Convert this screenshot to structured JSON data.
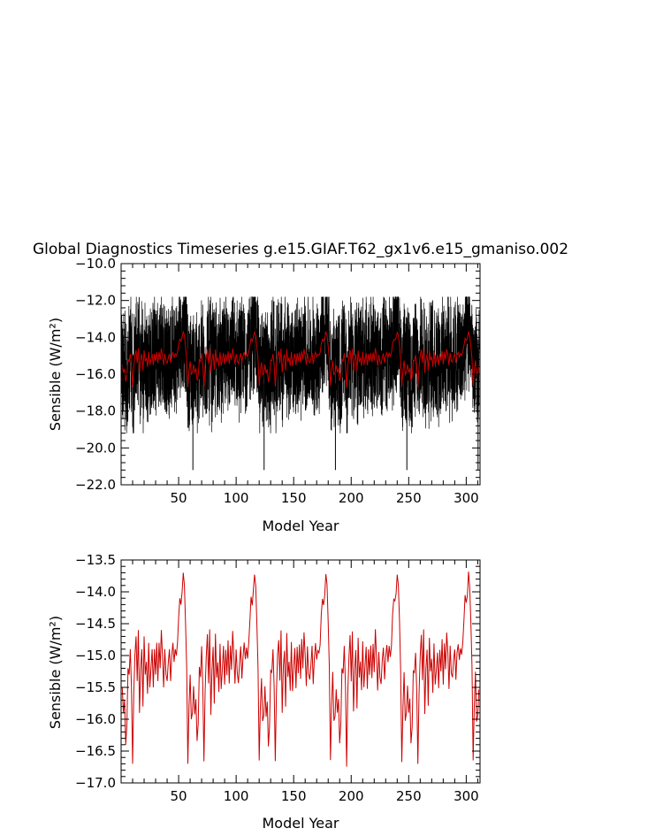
{
  "title": "Global Diagnostics Timeseries g.e15.GIAF.T62_gx1v6.e15_gmaniso.002",
  "colors": {
    "monthly": "#000000",
    "annual": "#cc0000",
    "axis": "#000000"
  },
  "chart_data": [
    {
      "type": "line",
      "panel": "top",
      "xlabel": "Model Year",
      "ylabel": "Sensible (W/m²)",
      "xlim": [
        0,
        312
      ],
      "ylim": [
        -22.0,
        -10.0
      ],
      "xticks": [
        50,
        100,
        150,
        200,
        250,
        300
      ],
      "yticks": [
        -22.0,
        -20.0,
        -18.0,
        -16.0,
        -14.0,
        -12.0,
        -10.0
      ],
      "ytick_labels": [
        "−22.0",
        "−20.0",
        "−18.0",
        "−16.0",
        "−14.0",
        "−12.0",
        "−10.0"
      ],
      "series": [
        {
          "kind": "monthly",
          "color": "#000000",
          "description_values": {
            "typical_min": -18.5,
            "typical_max": -12.5,
            "spikes_min": -21.3
          }
        },
        {
          "kind": "annual",
          "color": "#cc0000"
        }
      ]
    },
    {
      "type": "line",
      "panel": "bottom",
      "xlabel": "Model Year",
      "ylabel": "Sensible (W/m²)",
      "xlim": [
        0,
        312
      ],
      "ylim": [
        -17.0,
        -13.5
      ],
      "xticks": [
        50,
        100,
        150,
        200,
        250,
        300
      ],
      "yticks": [
        -17.0,
        -16.5,
        -16.0,
        -15.5,
        -15.0,
        -14.5,
        -14.0,
        -13.5
      ],
      "ytick_labels": [
        "−17.0",
        "−16.5",
        "−16.0",
        "−15.5",
        "−15.0",
        "−14.5",
        "−14.0",
        "−13.5"
      ],
      "series": [
        {
          "kind": "annual",
          "color": "#cc0000",
          "x": [
            1,
            2,
            3,
            4,
            5,
            6,
            7,
            8,
            9,
            10,
            11,
            12,
            13,
            14,
            15,
            16,
            17,
            18,
            19,
            20,
            21,
            22,
            23,
            24,
            25,
            26,
            27,
            28,
            29,
            30,
            31,
            32,
            33,
            34,
            35,
            36,
            37,
            38,
            39,
            40,
            41,
            42,
            43,
            44,
            45,
            46,
            47,
            48,
            49,
            50,
            51,
            52,
            53,
            54,
            55,
            56,
            57,
            58,
            59,
            60,
            61,
            62
          ],
          "values": [
            -15.5,
            -15.9,
            -15.7,
            -16.4,
            -16.1,
            -15.2,
            -15.3,
            -14.9,
            -15.5,
            -16.7,
            -15.6,
            -15.0,
            -14.7,
            -15.4,
            -14.6,
            -15.9,
            -15.2,
            -14.9,
            -15.8,
            -14.7,
            -15.3,
            -15.1,
            -15.6,
            -14.8,
            -15.5,
            -15.2,
            -14.9,
            -15.5,
            -14.9,
            -15.3,
            -14.8,
            -15.4,
            -14.8,
            -15.2,
            -14.6,
            -15.0,
            -15.5,
            -14.9,
            -15.3,
            -15.4,
            -15.1,
            -14.9,
            -15.4,
            -15.0,
            -14.8,
            -15.1,
            -14.9,
            -15.0,
            -14.8,
            -14.4,
            -14.1,
            -14.2,
            -14.0,
            -13.7,
            -13.9,
            -14.5,
            -15.2,
            -16.7,
            -15.8,
            -15.3,
            -16.0,
            -15.9
          ]
        }
      ]
    }
  ]
}
